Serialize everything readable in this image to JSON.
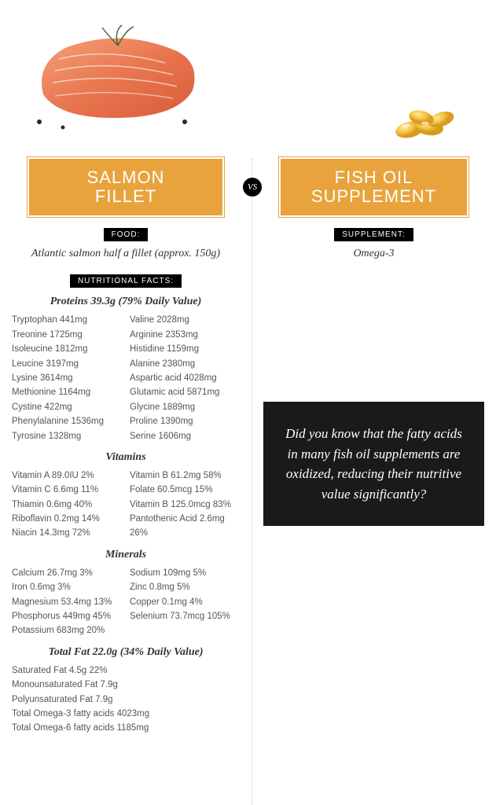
{
  "left": {
    "title_line1": "SALMON",
    "title_line2": "FILLET",
    "food_label": "FOOD:",
    "food_desc": "Atlantic salmon half a fillet (approx. 150g)",
    "nutr_label": "NUTRITIONAL FACTS:",
    "proteins_hdr": "Proteins 39.3g (79% Daily Value)",
    "proteins_left": [
      "Tryptophan 441mg",
      "Treonine 1725mg",
      "Isoleucine 1812mg",
      "Leucine 3197mg",
      "Lysine 3614mg",
      "Methionine 1164mg",
      "Cystine 422mg",
      "Phenylalanine 1536mg",
      "Tyrosine 1328mg"
    ],
    "proteins_right": [
      "Valine 2028mg",
      "Arginine 2353mg",
      "Histidine 1159mg",
      "Alanine 2380mg",
      "Aspartic acid 4028mg",
      "Glutamic acid 5871mg",
      "Glycine 1889mg",
      "Proline 1390mg",
      "Serine 1606mg"
    ],
    "vitamins_hdr": "Vitamins",
    "vitamins_left": [
      "Vitamin A 89.0IU 2%",
      "Vitamin C 6.6mg 11%",
      "Thiamin 0.6mg 40%",
      "Riboflavin 0.2mg 14%",
      "Niacin 14.3mg 72%"
    ],
    "vitamins_right": [
      "Vitamin B 61.2mg 58%",
      "Folate 60.5mcg 15%",
      "Vitamin B 125.0mcg 83%",
      "Pantothenic Acid 2.6mg 26%"
    ],
    "minerals_hdr": "Minerals",
    "minerals_left": [
      "Calcium 26.7mg 3%",
      "Iron 0.6mg 3%",
      "Magnesium 53.4mg 13%",
      "Phosphorus 449mg 45%",
      "Potassium 683mg 20%"
    ],
    "minerals_right": [
      "Sodium 109mg 5%",
      "Zinc 0.8mg 5%",
      "Copper 0.1mg 4%",
      "Selenium 73.7mcg 105%"
    ],
    "fat_hdr": "Total Fat 22.0g (34% Daily Value)",
    "fat_items": [
      "Saturated Fat 4.5g 22%",
      "Monounsaturated Fat 7.9g",
      "Polyunsaturated Fat 7.9g",
      "Total Omega-3 fatty acids 4023mg",
      "Total Omega-6 fatty acids 1185mg"
    ]
  },
  "right": {
    "title_line1": "FISH OIL",
    "title_line2": "SUPPLEMENT",
    "supp_label": "SUPPLEMENT:",
    "supp_desc": "Omega-3",
    "callout": "Did you know that the fatty acids in many fish oil supplements are oxidized, reducing their nutritive value significantly?"
  },
  "vs": "VS",
  "colors": {
    "accent": "#e8a33d",
    "black": "#1a1a1a",
    "text": "#555555"
  }
}
